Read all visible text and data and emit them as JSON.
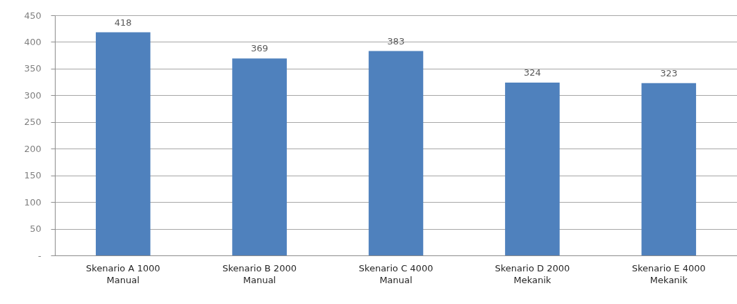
{
  "chart_data": {
    "type": "bar",
    "categories": [
      "Skenario A 1000\nManual",
      "Skenario B 2000\nManual",
      "Skenario C 4000\nManual",
      "Skenario D 2000\nMekanik",
      "Skenario E 4000\nMekanik"
    ],
    "values": [
      418,
      369,
      383,
      324,
      323
    ],
    "color": "#4f81bd",
    "ylim": [
      0,
      450
    ],
    "yticks": [
      {
        "value": 0,
        "label": "-"
      },
      50,
      100,
      150,
      200,
      250,
      300,
      350,
      400,
      450
    ],
    "grid": "y",
    "data_labels": true
  }
}
